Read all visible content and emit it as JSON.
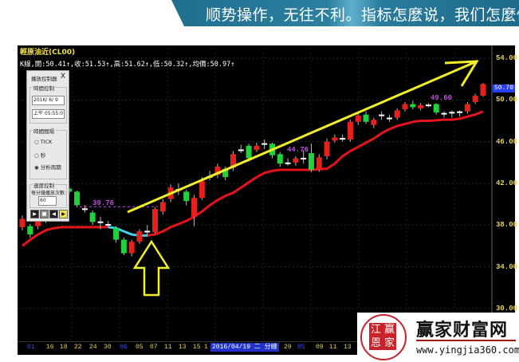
{
  "banner": {
    "text": "顺势操作，无往不利。指标怎麼说，我们怎麼做"
  },
  "chart": {
    "title": "輕原油近(CL00)",
    "info": "K線,開:50.41↑,收:51.53↑,高:51.62↑,低:50.32↑,均價:50.97↑",
    "last_price": "50.70",
    "y_ticks": [
      "54.00",
      "50.00",
      "46.00",
      "42.00",
      "38.00",
      "34.00",
      "30.00"
    ],
    "x_ticks": [
      {
        "label": "01",
        "blue": true
      },
      {
        "label": "16"
      },
      {
        "label": "18"
      },
      {
        "label": "22"
      },
      {
        "label": "24"
      },
      {
        "label": "30"
      },
      {
        "label": "06",
        "blue": true
      },
      {
        "label": "05"
      },
      {
        "label": "07"
      },
      {
        "label": "11"
      },
      {
        "label": "13"
      },
      {
        "label": "15"
      },
      {
        "label": "1"
      },
      {
        "label": "29"
      },
      {
        "label": "05",
        "blue": true
      },
      {
        "label": "09"
      },
      {
        "label": "11"
      },
      {
        "label": "13"
      }
    ],
    "x_highlight": "2016/04/19 二 分線",
    "price_labels": [
      "39.76",
      "44.76",
      "49.60"
    ],
    "colors": {
      "up": "#e8201c",
      "down": "#1fd43a",
      "doji": "#ffffff",
      "ma": "#e3141b",
      "ma_highlight": "#3fd0e8",
      "trend": "#f2ef2a",
      "label": "#c04fe0"
    },
    "candles": [
      [
        37.8,
        38.6,
        38.9,
        37.5
      ],
      [
        37.9,
        37.1,
        38.1,
        36.8
      ],
      [
        37.9,
        38.7,
        39.0,
        37.6
      ],
      [
        38.5,
        39.5,
        39.8,
        38.2
      ],
      [
        40.4,
        39.5,
        40.6,
        39.2
      ],
      [
        40.5,
        41.4,
        41.6,
        40.3
      ],
      [
        41.5,
        41.2,
        41.8,
        40.9
      ],
      [
        41.2,
        39.9,
        41.3,
        39.7
      ],
      [
        39.6,
        39.5,
        39.9,
        39.2
      ],
      [
        39.2,
        38.3,
        39.4,
        38.0
      ],
      [
        38.35,
        38.25,
        38.8,
        37.6
      ],
      [
        38.1,
        38.0,
        38.4,
        37.8
      ],
      [
        37.7,
        36.6,
        37.9,
        36.3
      ],
      [
        36.6,
        35.3,
        36.8,
        35.1
      ],
      [
        35.3,
        36.4,
        36.6,
        35.0
      ],
      [
        36.4,
        37.4,
        37.6,
        36.2
      ],
      [
        37.45,
        37.35,
        38.0,
        36.9
      ],
      [
        37.3,
        39.55,
        39.7,
        37.2
      ],
      [
        39.3,
        40.2,
        40.5,
        39.0
      ],
      [
        40.5,
        41.6,
        41.9,
        40.2
      ],
      [
        41.45,
        41.35,
        42.0,
        40.9
      ],
      [
        41.2,
        40.3,
        41.4,
        39.9
      ],
      [
        38.8,
        40.6,
        40.9,
        37.9
      ],
      [
        40.6,
        42.2,
        42.6,
        40.4
      ],
      [
        42.7,
        42.6,
        43.2,
        42.3
      ],
      [
        42.8,
        43.6,
        43.9,
        42.5
      ],
      [
        43.4,
        42.6,
        43.6,
        42.3
      ],
      [
        43.5,
        44.8,
        45.1,
        43.2
      ],
      [
        45.25,
        45.15,
        45.7,
        44.9
      ],
      [
        45.6,
        44.4,
        45.8,
        44.1
      ],
      [
        45.2,
        45.6,
        45.9,
        45.0
      ],
      [
        45.85,
        45.75,
        46.2,
        45.3
      ],
      [
        45.8,
        44.7,
        45.9,
        44.4
      ],
      [
        44.8,
        43.9,
        45.0,
        43.6
      ],
      [
        43.85,
        44.0,
        44.4,
        43.7
      ],
      [
        44.0,
        44.4,
        44.6,
        43.7
      ],
      [
        44.45,
        44.35,
        45.2,
        43.9
      ],
      [
        44.9,
        43.3,
        45.8,
        43.1
      ],
      [
        43.3,
        44.5,
        44.8,
        43.1
      ],
      [
        44.6,
        46.0,
        46.3,
        44.3
      ],
      [
        46.1,
        46.4,
        46.7,
        45.9
      ],
      [
        46.35,
        46.3,
        46.7,
        46.0
      ],
      [
        46.2,
        47.9,
        48.1,
        46.0
      ],
      [
        47.9,
        48.5,
        48.8,
        47.6
      ],
      [
        48.6,
        47.9,
        48.9,
        47.7
      ],
      [
        47.6,
        48.1,
        48.3,
        47.3
      ],
      [
        48.6,
        48.5,
        48.9,
        48.1
      ],
      [
        48.3,
        48.2,
        48.6,
        47.9
      ],
      [
        48.3,
        49.0,
        49.2,
        48.1
      ],
      [
        49.1,
        49.6,
        49.8,
        48.9
      ],
      [
        49.6,
        49.3,
        49.9,
        49.1
      ],
      [
        49.2,
        49.5,
        49.7,
        49.0
      ],
      [
        49.55,
        49.5,
        49.7,
        49.3
      ],
      [
        49.6,
        48.8,
        49.7,
        48.6
      ],
      [
        48.75,
        48.7,
        48.9,
        48.3
      ],
      [
        48.8,
        48.85,
        49.0,
        48.3
      ],
      [
        48.9,
        48.8,
        49.0,
        48.4
      ],
      [
        48.9,
        49.6,
        49.8,
        48.7
      ],
      [
        49.8,
        50.4,
        50.6,
        49.6
      ],
      [
        50.41,
        51.53,
        51.62,
        50.32
      ]
    ],
    "ma": [
      36.0,
      36.6,
      37.1,
      37.5,
      37.7,
      37.8,
      37.8,
      37.8,
      37.8,
      37.8,
      37.8,
      37.8,
      37.7,
      37.4,
      37.1,
      37.0,
      37.0,
      37.1,
      37.4,
      37.8,
      38.1,
      38.4,
      38.8,
      39.3,
      39.9,
      40.4,
      40.8,
      41.1,
      41.6,
      42.1,
      42.6,
      43.0,
      43.2,
      43.3,
      43.3,
      43.3,
      43.3,
      43.3,
      43.35,
      43.4,
      43.9,
      44.6,
      45.1,
      45.5,
      45.9,
      46.3,
      46.8,
      47.2,
      47.5,
      47.7,
      47.9,
      48.0,
      48.0,
      48.05,
      48.1,
      48.1,
      48.2,
      48.4,
      48.6,
      48.9
    ],
    "ma_highlight_range": [
      11,
      16
    ]
  },
  "dialog": {
    "title": "播放控制器",
    "close": "X",
    "time_group": "時間控制",
    "date_value": "2016/ 6/ 9",
    "time_value": "上午 05:55:0",
    "interval_group": "時間間隔",
    "radios": [
      {
        "label": "TICK",
        "checked": false
      },
      {
        "label": "秒",
        "checked": false
      },
      {
        "label": "分析周期",
        "checked": true
      }
    ],
    "speed_group": "速度控制",
    "speed_label": "每分鐘播放次數:",
    "speed_value": "60",
    "buttons": [
      "▶",
      "■",
      "◀",
      "▶"
    ]
  },
  "logo": {
    "seal": [
      "江",
      "赢",
      "恩",
      "家"
    ],
    "brand": "赢家财富网",
    "url": "www.yingjia360.com"
  }
}
